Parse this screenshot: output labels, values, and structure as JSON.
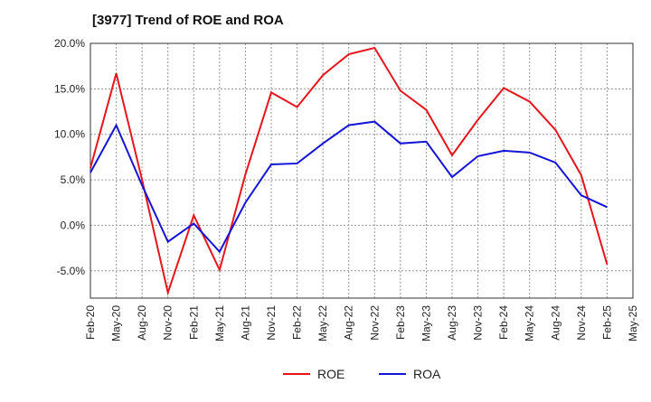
{
  "title": "[3977]  Trend of ROE and ROA",
  "chart_data": {
    "type": "line",
    "title": "[3977]  Trend of ROE and ROA",
    "xlabel": "",
    "ylabel": "",
    "x": [
      "Feb-20",
      "May-20",
      "Aug-20",
      "Nov-20",
      "Feb-21",
      "May-21",
      "Aug-21",
      "Nov-21",
      "Feb-22",
      "May-22",
      "Aug-22",
      "Nov-22",
      "Feb-23",
      "May-23",
      "Aug-23",
      "Nov-23",
      "Feb-24",
      "May-24",
      "Aug-24",
      "Nov-24",
      "Feb-25",
      "May-25"
    ],
    "ylim": [
      -8,
      20
    ],
    "yticks": [
      20,
      15,
      10,
      5,
      0,
      -5
    ],
    "ytick_labels": [
      "20.0%",
      "15.0%",
      "10.0%",
      "5.0%",
      "0.0%",
      "-5.0%"
    ],
    "grid": true,
    "legend_position": "bottom-center",
    "series": [
      {
        "name": "ROE",
        "color": "#e8141b",
        "values": [
          6.3,
          16.7,
          5.0,
          -7.4,
          1.1,
          -4.9,
          5.6,
          14.6,
          13.0,
          16.5,
          18.8,
          19.5,
          14.8,
          12.7,
          7.7,
          11.6,
          15.1,
          13.6,
          10.5,
          5.5,
          -4.3,
          null
        ]
      },
      {
        "name": "ROA",
        "color": "#1414d8",
        "values": [
          5.8,
          11.0,
          4.4,
          -1.8,
          0.2,
          -2.9,
          2.5,
          6.7,
          6.8,
          9.0,
          11.0,
          11.4,
          9.0,
          9.2,
          5.3,
          7.6,
          8.2,
          8.0,
          6.9,
          3.3,
          2.0,
          null
        ]
      }
    ]
  }
}
